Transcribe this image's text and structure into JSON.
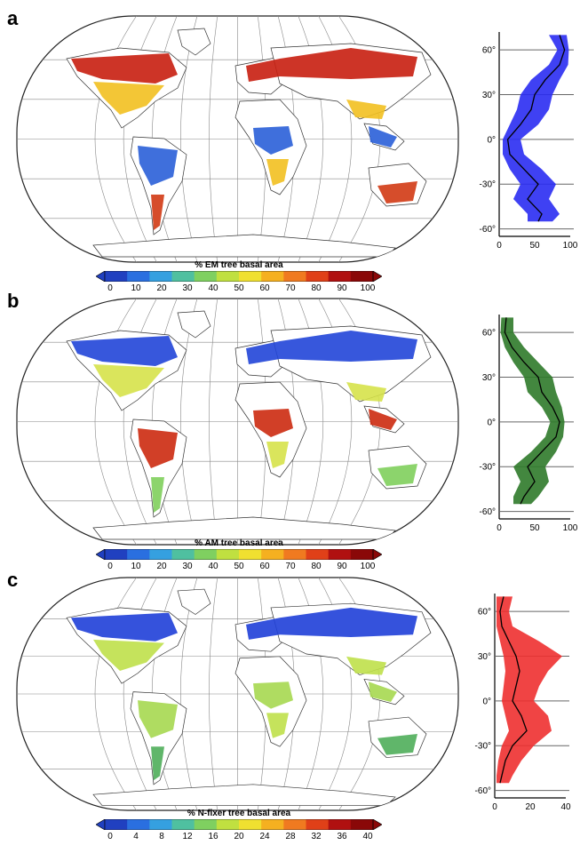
{
  "panels": [
    {
      "letter": "a",
      "colorbar_title": "% EM tree basal area",
      "colorbar_ticks": [
        "0",
        "10",
        "20",
        "30",
        "40",
        "50",
        "60",
        "70",
        "80",
        "90",
        "100"
      ],
      "profile_color": "#2a2cf2",
      "profile_x_ticks": [
        "0",
        "50",
        "100"
      ],
      "profile_y_ticks": [
        "60°",
        "30°",
        "0°",
        "-30°",
        "-60°"
      ],
      "map_colors": {
        "north": "#c81e10",
        "temperate": "#f2c020",
        "tropics": "#2a5fd8",
        "south": "#d23a14"
      }
    },
    {
      "letter": "b",
      "colorbar_title": "% AM tree basal area",
      "colorbar_ticks": [
        "0",
        "10",
        "20",
        "30",
        "40",
        "50",
        "60",
        "70",
        "80",
        "90",
        "100"
      ],
      "profile_color": "#2f7a2a",
      "profile_x_ticks": [
        "0",
        "50",
        "100"
      ],
      "profile_y_ticks": [
        "60°",
        "30°",
        "0°",
        "-30°",
        "-60°"
      ],
      "map_colors": {
        "north": "#2145d8",
        "temperate": "#d6e24a",
        "tropics": "#cc2a10",
        "south": "#7fcf5c"
      }
    },
    {
      "letter": "c",
      "colorbar_title": "% N-fixer tree basal area",
      "colorbar_ticks": [
        "0",
        "4",
        "8",
        "12",
        "16",
        "20",
        "24",
        "28",
        "32",
        "36",
        "40"
      ],
      "profile_color": "#ee3030",
      "profile_x_ticks": [
        "0",
        "20",
        "40"
      ],
      "profile_y_ticks": [
        "60°",
        "30°",
        "0°",
        "-30°",
        "-60°"
      ],
      "map_colors": {
        "north": "#1f3fd8",
        "temperate": "#bfe04a",
        "tropics": "#a6d850",
        "south": "#4fae5a"
      }
    }
  ],
  "colorbar_palette": [
    "#2040c0",
    "#2a6fe0",
    "#35a0e0",
    "#4fc0a0",
    "#7fd060",
    "#c0e040",
    "#f0e030",
    "#f5b020",
    "#f07a20",
    "#e04018",
    "#b01010",
    "#8a0808"
  ],
  "profiles": [
    {
      "lat": [
        70,
        60,
        50,
        40,
        30,
        20,
        10,
        0,
        -10,
        -20,
        -30,
        -40,
        -50,
        -55
      ],
      "mean": [
        85,
        92,
        85,
        65,
        50,
        45,
        30,
        12,
        15,
        35,
        55,
        40,
        60,
        55
      ],
      "lo": [
        70,
        82,
        70,
        45,
        30,
        25,
        15,
        5,
        5,
        15,
        30,
        20,
        40,
        40
      ],
      "hi": [
        95,
        98,
        97,
        85,
        75,
        70,
        55,
        30,
        35,
        60,
        80,
        70,
        85,
        75
      ]
    },
    {
      "lat": [
        70,
        60,
        50,
        40,
        30,
        20,
        10,
        0,
        -10,
        -20,
        -30,
        -40,
        -50,
        -55
      ],
      "mean": [
        10,
        8,
        18,
        35,
        55,
        60,
        75,
        85,
        80,
        60,
        40,
        50,
        35,
        30
      ],
      "lo": [
        3,
        2,
        8,
        20,
        35,
        40,
        60,
        72,
        65,
        45,
        20,
        30,
        20,
        20
      ],
      "hi": [
        20,
        20,
        35,
        55,
        75,
        80,
        88,
        92,
        90,
        80,
        65,
        70,
        55,
        45
      ]
    },
    {
      "lat": [
        70,
        60,
        50,
        40,
        30,
        20,
        10,
        0,
        -10,
        -20,
        -30,
        -40,
        -50,
        -55
      ],
      "mean": [
        5,
        3,
        4,
        8,
        12,
        14,
        12,
        10,
        15,
        18,
        10,
        6,
        4,
        3
      ],
      "lo": [
        1,
        1,
        1,
        3,
        5,
        6,
        5,
        4,
        6,
        8,
        4,
        2,
        1,
        1
      ],
      "hi": [
        10,
        8,
        10,
        25,
        38,
        30,
        25,
        22,
        30,
        32,
        22,
        15,
        10,
        8
      ]
    }
  ]
}
